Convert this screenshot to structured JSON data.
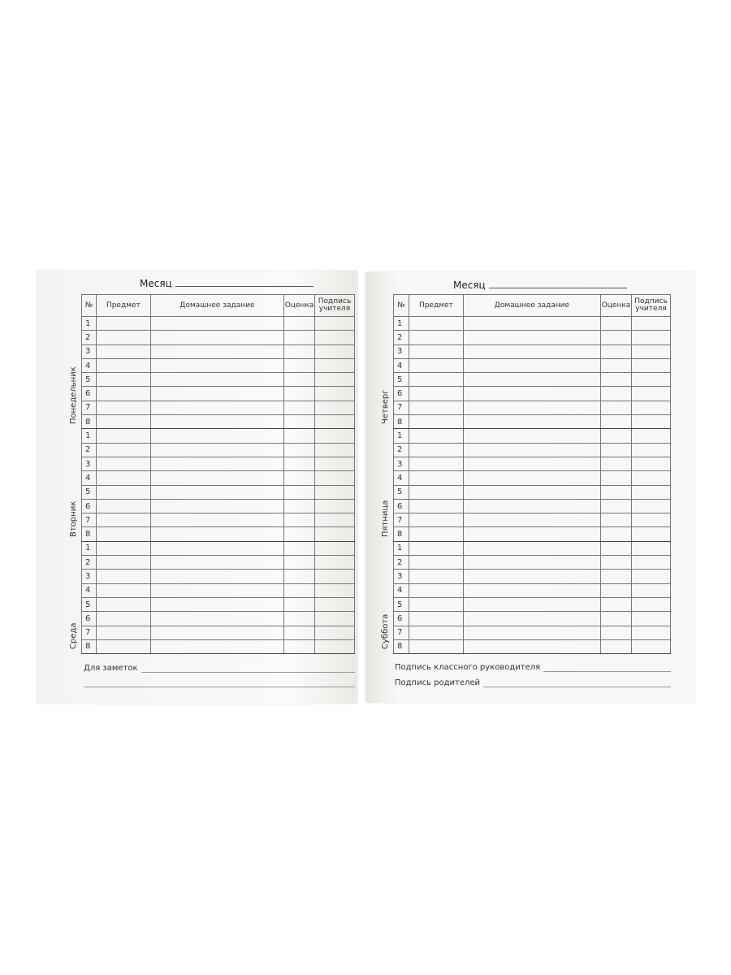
{
  "left_page": {
    "month_label": "Месяц",
    "headers": [
      "№",
      "Предмет",
      "Домашнее задание",
      "Оценка",
      "Подпись учителя"
    ],
    "days": [
      "Понедельник",
      "Вторник",
      "Среда"
    ],
    "row_numbers": [
      "1",
      "2",
      "3",
      "4",
      "5",
      "6",
      "7",
      "8"
    ],
    "notes_label": "Для заметок"
  },
  "right_page": {
    "month_label": "Месяц",
    "headers": [
      "№",
      "Предмет",
      "Домашнее задание",
      "Оценка",
      "Подпись учителя"
    ],
    "days": [
      "Четверг",
      "Пятница",
      "Суббота"
    ],
    "row_numbers": [
      "1",
      "2",
      "3",
      "4",
      "5",
      "6",
      "7",
      "8"
    ],
    "class_teacher_signature_label": "Подпись классного руководителя",
    "parents_signature_label": "Подпись родителей"
  }
}
